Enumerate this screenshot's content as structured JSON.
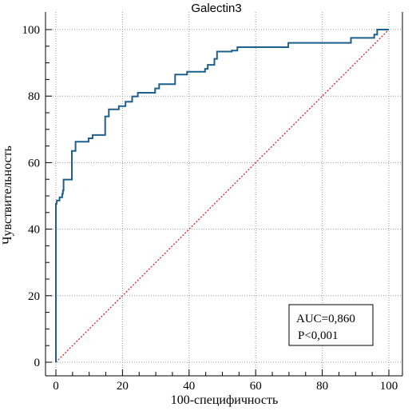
{
  "chart_data": {
    "type": "line",
    "title": "Galectin3",
    "xlabel": "100-специфичность",
    "ylabel": "Чувствительность",
    "xlim": [
      0,
      100
    ],
    "ylim": [
      0,
      100
    ],
    "x_ticks": [
      "0",
      "20",
      "40",
      "60",
      "80",
      "100"
    ],
    "y_ticks": [
      "0",
      "20",
      "40",
      "60",
      "80",
      "100"
    ],
    "grid": true,
    "colors": {
      "roc": "#1f5f8b",
      "reference": "#d9232a"
    },
    "series": [
      {
        "x": [
          0,
          0,
          0.2,
          0.3,
          1.1,
          1.1,
          1.9,
          1.9,
          2.1,
          2.1,
          2.3,
          2.3,
          4.8,
          4.8,
          5.9,
          5.9,
          9.8,
          9.8,
          11,
          11,
          14.8,
          14.8,
          15.9,
          15.9,
          18.9,
          18.9,
          20.9,
          20.9,
          22.9,
          22.9,
          24.6,
          24.6,
          29.8,
          29.8,
          31,
          31,
          35.8,
          35.8,
          39.4,
          39.4,
          44.8,
          44.8,
          45.6,
          45.6,
          47.6,
          47.6,
          48.4,
          48.4,
          52.8,
          52.8,
          54.5,
          54.5,
          69.8,
          69.8,
          74.5,
          74.5,
          88.6,
          88.6,
          95.6,
          95.6,
          96.5,
          96.5,
          100
        ],
        "y": [
          0,
          47.6,
          47.6,
          48.6,
          48.6,
          49.6,
          49.6,
          50.6,
          50.6,
          51.6,
          51.6,
          54.9,
          54.9,
          63.5,
          63.5,
          66.3,
          66.3,
          67.3,
          67.3,
          68.3,
          68.3,
          73.9,
          73.9,
          76,
          76,
          77,
          77,
          78.3,
          78.3,
          79.9,
          79.9,
          81,
          81,
          82.3,
          82.3,
          83.6,
          83.6,
          86.5,
          86.5,
          87.3,
          87.3,
          88.2,
          88.2,
          89.4,
          89.4,
          91.2,
          91.2,
          93.4,
          93.4,
          93.7,
          93.7,
          94.7,
          94.7,
          96,
          96,
          96,
          96,
          97.5,
          97.5,
          98.5,
          98.5,
          100,
          100
        ]
      },
      {
        "x": [
          0,
          100
        ],
        "y": [
          0,
          100
        ]
      }
    ],
    "annotations": [
      "AUC=0,860",
      "P<0,001"
    ]
  }
}
